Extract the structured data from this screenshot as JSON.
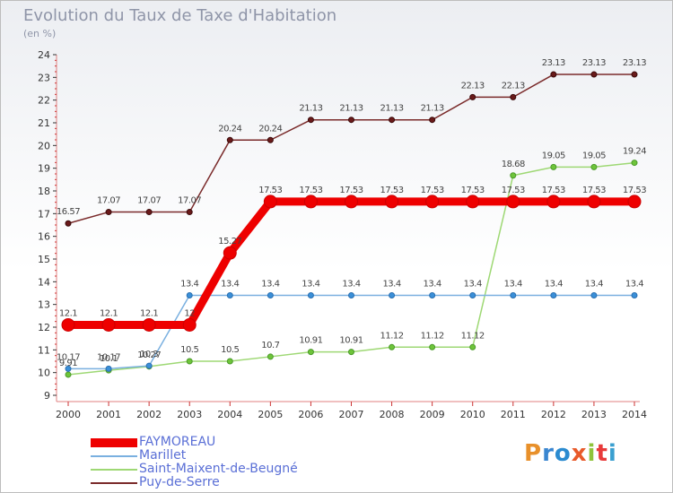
{
  "header": {
    "title": "Evolution du Taux de Taxe d'Habitation",
    "subtitle": "(en %)"
  },
  "logo": {
    "text": "Proxiti",
    "colors": [
      "#e8902a",
      "#3a86d0",
      "#2b8bd0",
      "#e85a2a",
      "#8fc43a",
      "#e83a3a",
      "#3a9fd0"
    ]
  },
  "chart_data": {
    "type": "line",
    "x": [
      2000,
      2001,
      2002,
      2003,
      2004,
      2005,
      2006,
      2007,
      2008,
      2009,
      2010,
      2011,
      2012,
      2013,
      2014
    ],
    "xlabel": "",
    "ylabel": "",
    "ylim": [
      9,
      24
    ],
    "yticks": [
      9,
      10,
      11,
      12,
      13,
      14,
      15,
      16,
      17,
      18,
      19,
      20,
      21,
      22,
      23,
      24
    ],
    "grid": false,
    "legend_position": "bottom-left",
    "series": [
      {
        "name": "Puy-de-Serre",
        "color": "#7a2a2a",
        "values": [
          16.57,
          17.07,
          17.07,
          17.07,
          20.24,
          20.24,
          21.13,
          21.13,
          21.13,
          21.13,
          22.13,
          22.13,
          23.13,
          23.13,
          23.13
        ],
        "labels": [
          "16.57",
          "17.07",
          "17.07",
          "17.07",
          "20.24",
          "20.24",
          "21.13",
          "21.13",
          "21.13",
          "21.13",
          "22.13",
          "22.13",
          "23.13",
          "23.13",
          "23.13"
        ]
      },
      {
        "name": "Saint-Maixent-de-Beugné",
        "color": "#9ed874",
        "values": [
          9.91,
          10.1,
          10.27,
          10.5,
          10.5,
          10.7,
          10.91,
          10.91,
          11.12,
          11.12,
          11.12,
          18.68,
          19.05,
          19.05,
          19.24
        ],
        "labels": [
          "9.91",
          "10.1",
          "10.27",
          "10.5",
          "10.5",
          "10.7",
          "10.91",
          "10.91",
          "11.12",
          "11.12",
          "11.12",
          "18.68",
          "19.05",
          "19.05",
          "19.24"
        ]
      },
      {
        "name": "Marillet",
        "color": "#7ab0e0",
        "values": [
          10.17,
          10.17,
          10.3,
          13.4,
          13.4,
          13.4,
          13.4,
          13.4,
          13.4,
          13.4,
          13.4,
          13.4,
          13.4,
          13.4,
          13.4
        ],
        "labels": [
          "10.17",
          "10.17",
          "10.3",
          "13.4",
          "13.4",
          "13.4",
          "13.4",
          "13.4",
          "13.4",
          "13.4",
          "13.4",
          "13.4",
          "13.4",
          "13.4",
          "13.4"
        ]
      },
      {
        "name": "FAYMOREAU",
        "color": "#ee0000",
        "values": [
          12.1,
          12.1,
          12.1,
          12.1,
          15.27,
          17.53,
          17.53,
          17.53,
          17.53,
          17.53,
          17.53,
          17.53,
          17.53,
          17.53,
          17.53
        ],
        "labels": [
          "12.1",
          "12.1",
          "12.1",
          "12",
          "15.27",
          "17.53",
          "17.53",
          "17.53",
          "17.53",
          "17.53",
          "17.53",
          "17.53",
          "17.53",
          "17.53",
          "17.53"
        ]
      }
    ],
    "legend": [
      "FAYMOREAU",
      "Marillet",
      "Saint-Maixent-de-Beugné",
      "Puy-de-Serre"
    ]
  }
}
